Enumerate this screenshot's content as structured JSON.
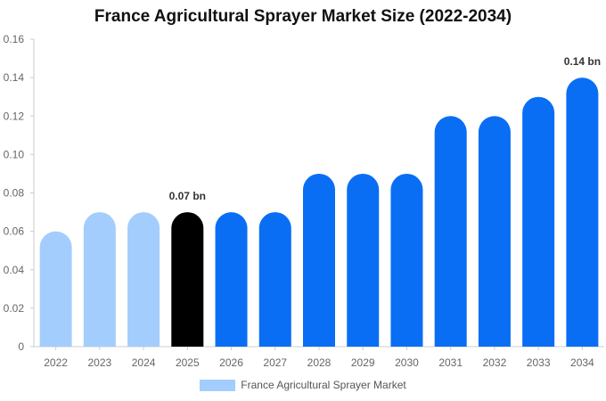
{
  "chart_data": {
    "type": "bar",
    "title": "France Agricultural Sprayer Market Size (2022-2034)",
    "categories": [
      "2022",
      "2023",
      "2024",
      "2025",
      "2026",
      "2027",
      "2028",
      "2029",
      "2030",
      "2031",
      "2032",
      "2033",
      "2034"
    ],
    "series": [
      {
        "name": "France Agricultural Sprayer Market",
        "values": [
          0.06,
          0.07,
          0.07,
          0.07,
          0.07,
          0.07,
          0.09,
          0.09,
          0.09,
          0.12,
          0.12,
          0.13,
          0.14
        ]
      }
    ],
    "ylim": [
      0,
      0.16
    ],
    "yticks": [
      "0",
      "0.02",
      "0.04",
      "0.06",
      "0.08",
      "0.10",
      "0.12",
      "0.14",
      "0.16"
    ],
    "ytick_values": [
      0,
      0.02,
      0.04,
      0.06,
      0.08,
      0.1,
      0.12,
      0.14,
      0.16
    ],
    "annotations": [
      {
        "category": "2025",
        "text": "0.07 bn"
      },
      {
        "category": "2034",
        "text": "0.14 bn"
      }
    ],
    "bar_colors": {
      "historical": "#a3cdfd",
      "current": "#000000",
      "forecast": "#0a6ef5"
    },
    "legend_color": "#a3cdfd",
    "grid": false,
    "legend_position": "bottom"
  }
}
